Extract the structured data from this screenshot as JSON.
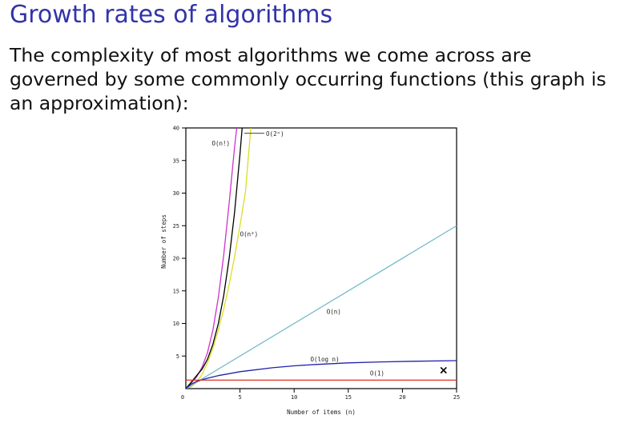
{
  "slide": {
    "title": "Growth rates of algorithms",
    "body": "The complexity of most algorithms we come across are governed by some commonly occurring functions (this graph is an approximation):"
  },
  "chart_data": {
    "type": "line",
    "xlabel": "Number of items (n)",
    "ylabel": "Number of steps",
    "xlim": [
      0,
      25
    ],
    "ylim": [
      0,
      40
    ],
    "x_ticks": [
      {
        "value": 0,
        "label": "0"
      },
      {
        "value": 5,
        "label": "5"
      },
      {
        "value": 10,
        "label": "10"
      },
      {
        "value": 15,
        "label": "15"
      },
      {
        "value": 20,
        "label": "20"
      },
      {
        "value": 25,
        "label": "25"
      }
    ],
    "y_ticks": [
      {
        "value": 5,
        "label": "5"
      },
      {
        "value": 10,
        "label": "10"
      },
      {
        "value": 15,
        "label": "15"
      },
      {
        "value": 20,
        "label": "20"
      },
      {
        "value": 25,
        "label": "25"
      },
      {
        "value": 30,
        "label": "30"
      },
      {
        "value": 35,
        "label": "35"
      },
      {
        "value": 40,
        "label": "40"
      }
    ],
    "series": [
      {
        "name": "O(n!)",
        "color": "#cc33cc",
        "x": [
          0,
          0.5,
          1,
          1.5,
          2,
          2.5,
          3,
          3.5,
          4,
          4.5,
          4.7
        ],
        "y": [
          0,
          0.9,
          1.8,
          3.3,
          5.5,
          9,
          14,
          20.5,
          28.5,
          37,
          40
        ]
      },
      {
        "name": "O(2ⁿ)",
        "color": "#000000",
        "x": [
          0,
          0.5,
          1,
          1.5,
          2,
          2.5,
          3,
          3.5,
          4,
          4.5,
          5,
          5.2
        ],
        "y": [
          0,
          1,
          2,
          3,
          4.5,
          6.8,
          10,
          14.3,
          20,
          27,
          36,
          40
        ]
      },
      {
        "name": "O(n²)",
        "color": "#dddd22",
        "x": [
          0,
          0.5,
          1,
          1.5,
          2,
          2.5,
          3,
          3.5,
          4,
          4.5,
          5,
          5.5,
          6
        ],
        "y": [
          0,
          0.3,
          1,
          2.2,
          4,
          6.2,
          9,
          12.2,
          16,
          20.2,
          25,
          30.2,
          40
        ]
      },
      {
        "name": "O(n)",
        "color": "#77bbcc",
        "x": [
          0,
          25
        ],
        "y": [
          0,
          25
        ]
      },
      {
        "name": "O(log n)",
        "color": "#2222aa",
        "x": [
          0,
          0.5,
          1,
          2,
          3,
          4,
          5,
          6,
          8,
          10,
          12,
          15,
          18,
          21,
          25
        ],
        "y": [
          0,
          0.7,
          1.1,
          1.6,
          2,
          2.3,
          2.6,
          2.8,
          3.2,
          3.5,
          3.7,
          3.95,
          4.1,
          4.2,
          4.3
        ]
      },
      {
        "name": "O(1)",
        "color": "#dd3322",
        "x": [
          0,
          25
        ],
        "y": [
          1.3,
          1.3
        ]
      }
    ],
    "labels": [
      {
        "text": "O(n!)",
        "x": 2.4,
        "y": 37.3
      },
      {
        "text": "O(2ⁿ)",
        "x": 7.4,
        "y": 38.8
      },
      {
        "text": "O(n²)",
        "x": 5.0,
        "y": 23.4
      },
      {
        "text": "O(n)",
        "x": 13.0,
        "y": 11.5
      },
      {
        "text": "O(log n)",
        "x": 11.5,
        "y": 4.2
      },
      {
        "text": "O(1)",
        "x": 17.0,
        "y": 2.0
      }
    ],
    "marker": {
      "symbol": "×",
      "x": 23.8,
      "y": 2.9
    }
  }
}
